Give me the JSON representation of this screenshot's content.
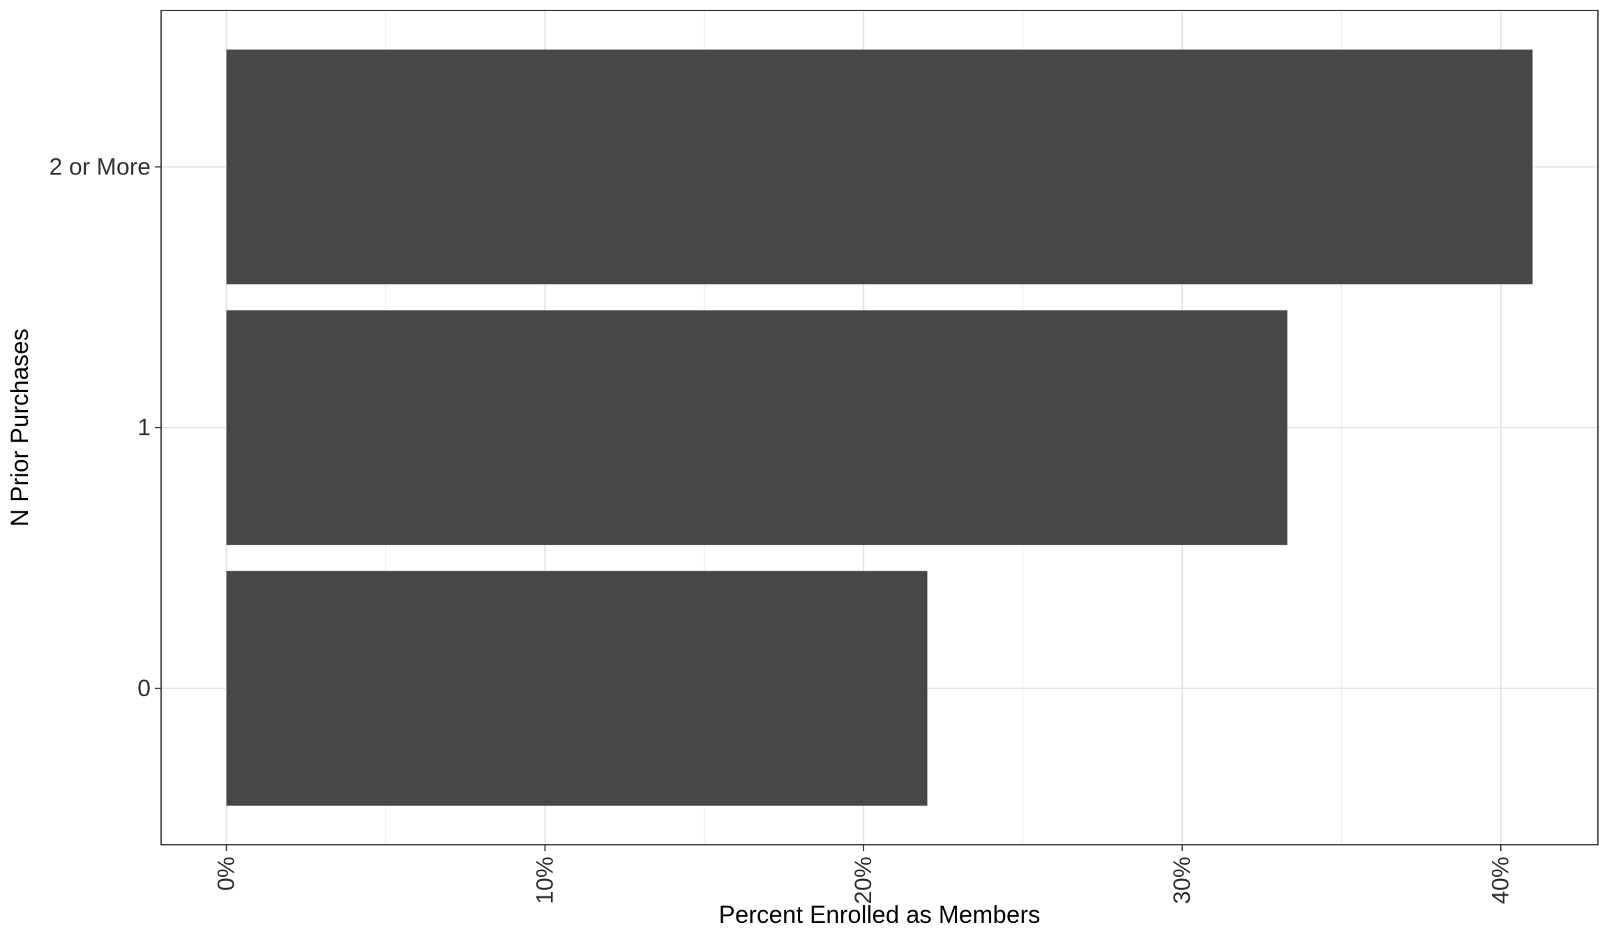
{
  "chart_data": {
    "type": "bar",
    "orientation": "horizontal",
    "title": "",
    "xlabel": "Percent Enrolled as Members",
    "ylabel": "N Prior Purchases",
    "categories": [
      "0",
      "1",
      "2 or More"
    ],
    "values": [
      22.0,
      33.3,
      41.0
    ],
    "value_unit": "%",
    "xlim": [
      -2.05,
      43.05
    ],
    "x_ticks": [
      0,
      10,
      20,
      30,
      40
    ],
    "x_tick_labels": [
      "0%",
      "10%",
      "20%",
      "30%",
      "40%"
    ],
    "x_minor_ticks": [
      5,
      15,
      25,
      35
    ],
    "grid": true,
    "legend": "none",
    "bar_color": "#474747",
    "theme": "bw"
  }
}
